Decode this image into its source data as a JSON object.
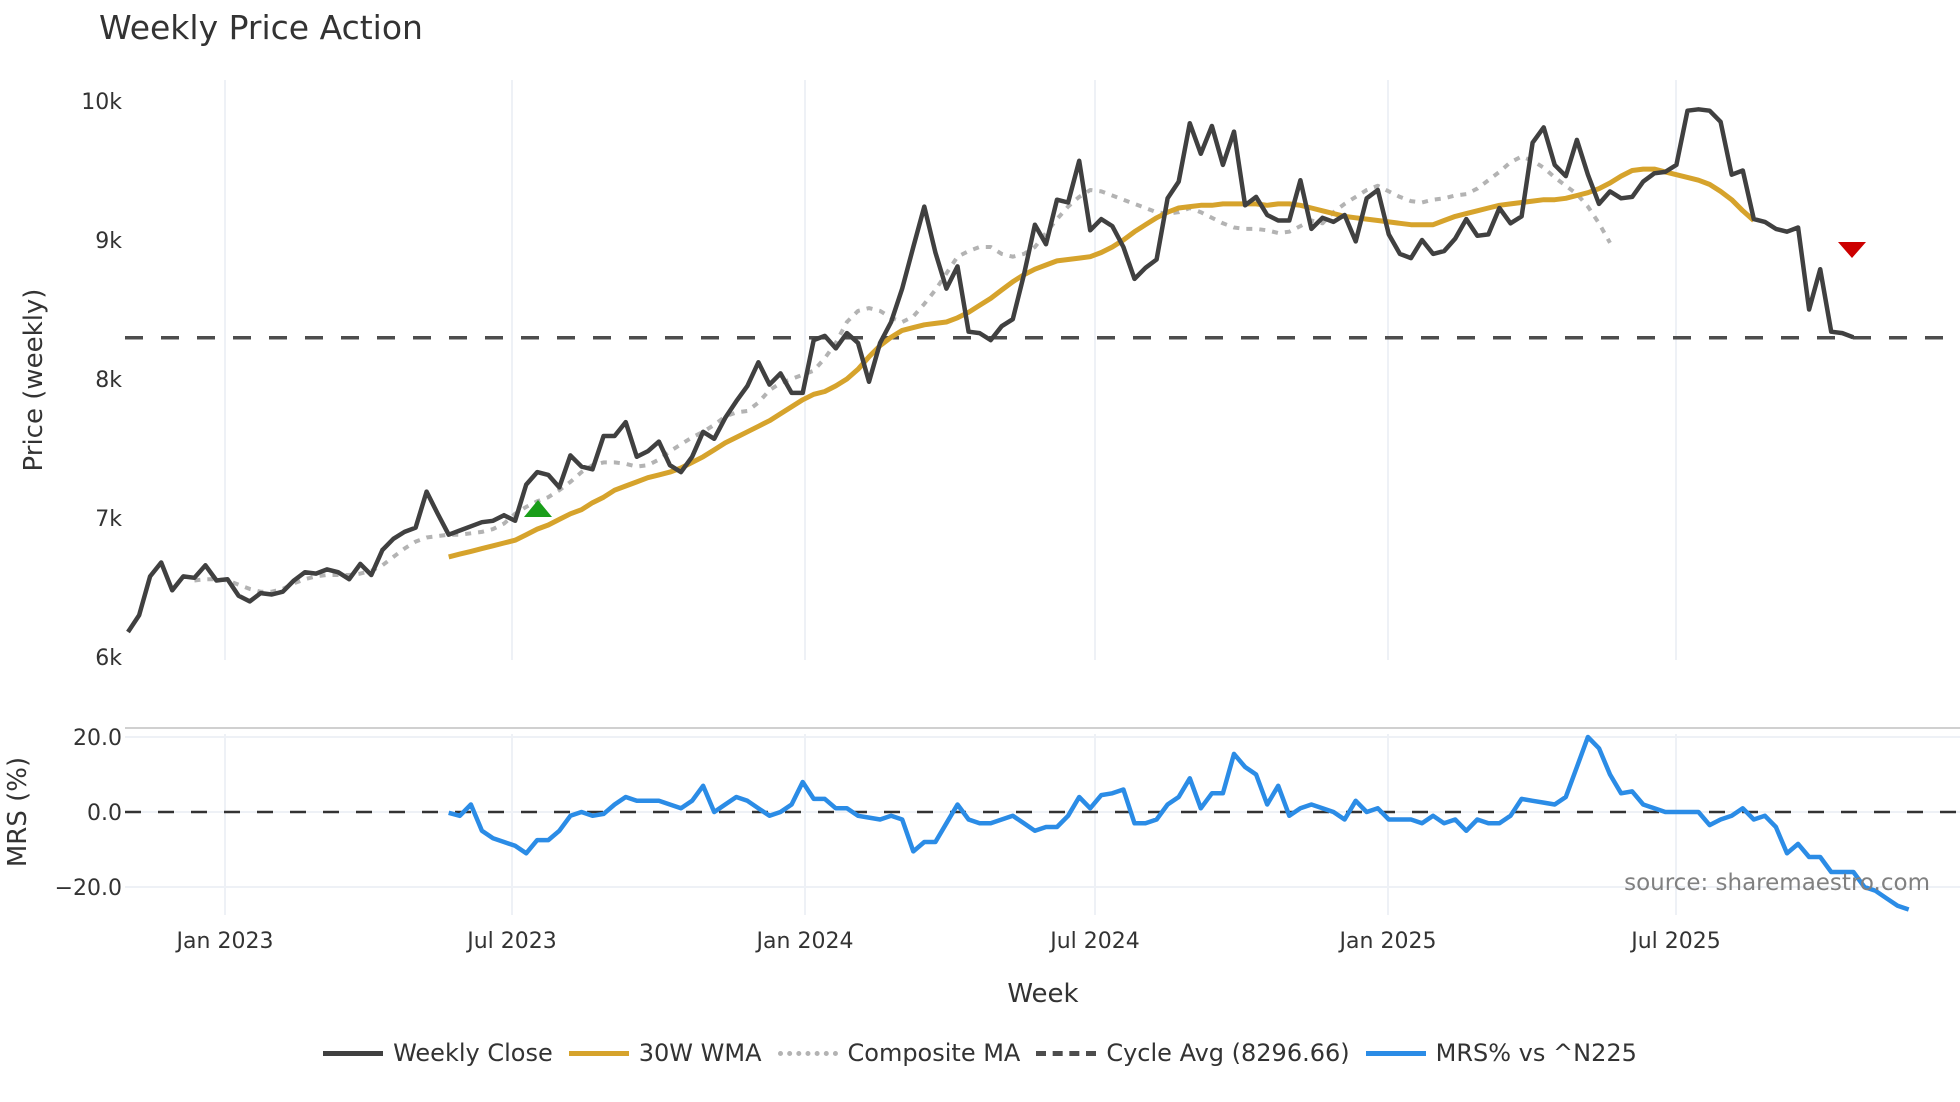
{
  "title": "Weekly Price Action",
  "colors": {
    "weekly_close": "#404040",
    "wma30": "#d6a32c",
    "composite_ma": "#b3b3b3",
    "cycle_avg": "#4d4d4d",
    "mrs": "#2b8ce6",
    "buy_marker": "#1a9e1a",
    "sell_marker": "#cc0000",
    "grid": "#eef1f6"
  },
  "price_panel": {
    "ylabel": "Price (weekly)",
    "yticks": [
      "10k",
      "9k",
      "8k",
      "7k",
      "6k"
    ]
  },
  "mrs_panel": {
    "ylabel": "MRS (%)",
    "yticks": [
      "20.0",
      "0.0",
      "−20.0"
    ]
  },
  "xaxis": {
    "title": "Week",
    "ticks": [
      "Jan 2023",
      "Jul 2023",
      "Jan 2024",
      "Jul 2024",
      "Jan 2025",
      "Jul 2025"
    ]
  },
  "watermark": "source: sharemaestro.com",
  "legend": [
    {
      "label": "Weekly Close",
      "style": "solid",
      "key": "weekly_close"
    },
    {
      "label": "30W WMA",
      "style": "solid",
      "key": "wma30"
    },
    {
      "label": "Composite MA",
      "style": "dotted",
      "key": "composite_ma"
    },
    {
      "label": "Cycle Avg (8296.66)",
      "style": "dashed",
      "key": "cycle_avg"
    },
    {
      "label": "MRS% vs ^N225",
      "style": "solid",
      "key": "mrs"
    }
  ],
  "chart_data": [
    {
      "type": "line",
      "title": "Weekly Price Action",
      "xlabel": "Week",
      "ylabel": "Price (weekly)",
      "ylim": [
        6000,
        10150
      ],
      "x_start_week": "2022-10-24",
      "x_step": "1 week",
      "x_ticks": [
        "Jan 2023",
        "Jul 2023",
        "Jan 2024",
        "Jul 2024",
        "Jan 2025",
        "Jul 2025"
      ],
      "grid": true,
      "legend_position": "bottom",
      "series": [
        {
          "name": "Weekly Close",
          "values": [
            6180,
            6300,
            6580,
            6680,
            6480,
            6580,
            6570,
            6660,
            6550,
            6560,
            6440,
            6400,
            6460,
            6450,
            6470,
            6550,
            6610,
            6600,
            6630,
            6610,
            6560,
            6670,
            6590,
            6770,
            6850,
            6900,
            6930,
            7190,
            7030,
            6880,
            6910,
            6940,
            6970,
            6980,
            7020,
            6980,
            7240,
            7330,
            7310,
            7220,
            7450,
            7370,
            7350,
            7590,
            7590,
            7690,
            7440,
            7480,
            7550,
            7380,
            7330,
            7440,
            7620,
            7570,
            7720,
            7840,
            7950,
            8120,
            7960,
            8040,
            7900,
            7900,
            8280,
            8310,
            8220,
            8330,
            8260,
            7980,
            8260,
            8410,
            8650,
            8950,
            9240,
            8910,
            8650,
            8810,
            8340,
            8330,
            8280,
            8380,
            8430,
            8750,
            9110,
            8970,
            9290,
            9270,
            9570,
            9070,
            9150,
            9100,
            8950,
            8720,
            8800,
            8860,
            9300,
            9420,
            9840,
            9620,
            9820,
            9540,
            9780,
            9250,
            9310,
            9180,
            9140,
            9140,
            9430,
            9080,
            9160,
            9130,
            9180,
            8990,
            9300,
            9360,
            9040,
            8900,
            8870,
            9000,
            8900,
            8920,
            9010,
            9150,
            9030,
            9040,
            9230,
            9120,
            9170,
            9700,
            9810,
            9540,
            9460,
            9720,
            9470,
            9260,
            9350,
            9300,
            9310,
            9420,
            9480,
            9490,
            9540,
            9930,
            9940,
            9930,
            9850,
            9470,
            9500,
            9150,
            9130,
            9080,
            9060,
            9090,
            8500,
            8790,
            8340,
            8330,
            8300
          ]
        },
        {
          "name": "30W WMA",
          "start_index": 29,
          "values": [
            6720,
            6740,
            6760,
            6780,
            6800,
            6820,
            6840,
            6880,
            6920,
            6950,
            6990,
            7030,
            7060,
            7110,
            7150,
            7200,
            7230,
            7260,
            7290,
            7310,
            7330,
            7360,
            7400,
            7440,
            7490,
            7540,
            7580,
            7620,
            7660,
            7700,
            7750,
            7800,
            7850,
            7890,
            7910,
            7950,
            8000,
            8070,
            8160,
            8240,
            8300,
            8350,
            8370,
            8390,
            8400,
            8410,
            8440,
            8480,
            8530,
            8580,
            8640,
            8700,
            8750,
            8790,
            8820,
            8850,
            8860,
            8870,
            8880,
            8910,
            8950,
            9000,
            9060,
            9110,
            9160,
            9200,
            9230,
            9240,
            9250,
            9250,
            9260,
            9260,
            9260,
            9260,
            9250,
            9260,
            9260,
            9250,
            9230,
            9210,
            9190,
            9170,
            9160,
            9150,
            9140,
            9130,
            9120,
            9110,
            9110,
            9110,
            9140,
            9170,
            9190,
            9210,
            9230,
            9250,
            9260,
            9270,
            9280,
            9290,
            9290,
            9300,
            9320,
            9340,
            9370,
            9410,
            9460,
            9500,
            9510,
            9510,
            9490,
            9470,
            9450,
            9430,
            9400,
            9350,
            9290,
            9210,
            9140
          ]
        },
        {
          "name": "Composite MA",
          "start_index": 6,
          "values": [
            6550,
            6560,
            6560,
            6550,
            6520,
            6490,
            6470,
            6470,
            6490,
            6530,
            6560,
            6580,
            6590,
            6590,
            6590,
            6600,
            6620,
            6660,
            6720,
            6780,
            6830,
            6860,
            6870,
            6880,
            6880,
            6890,
            6900,
            6920,
            6960,
            7030,
            7080,
            7120,
            7150,
            7200,
            7260,
            7330,
            7380,
            7400,
            7400,
            7390,
            7370,
            7380,
            7420,
            7480,
            7530,
            7580,
            7620,
            7670,
            7730,
            7760,
            7770,
            7830,
            7920,
            7970,
            8000,
            8030,
            8060,
            8150,
            8260,
            8410,
            8490,
            8510,
            8490,
            8440,
            8410,
            8450,
            8540,
            8640,
            8760,
            8880,
            8920,
            8950,
            8950,
            8900,
            8880,
            8900,
            8950,
            9050,
            9150,
            9240,
            9310,
            9360,
            9350,
            9320,
            9290,
            9260,
            9230,
            9200,
            9190,
            9200,
            9230,
            9200,
            9160,
            9120,
            9090,
            9080,
            9080,
            9070,
            9050,
            9060,
            9100,
            9140,
            9120,
            9200,
            9260,
            9310,
            9360,
            9390,
            9350,
            9310,
            9280,
            9270,
            9290,
            9300,
            9320,
            9330,
            9370,
            9430,
            9490,
            9560,
            9600,
            9570,
            9520,
            9450,
            9390,
            9330,
            9240,
            9120,
            8980
          ]
        },
        {
          "name": "Cycle Avg (8296.66)",
          "constant": 8296.66
        }
      ],
      "markers": [
        {
          "type": "buy",
          "shape": "triangle-up",
          "color": "#1a9e1a",
          "x": "Aug 2023",
          "y": 7050
        },
        {
          "type": "sell",
          "shape": "triangle-down",
          "color": "#cc0000",
          "x": "Oct 2025",
          "y": 8930
        }
      ]
    },
    {
      "type": "line",
      "xlabel": "Week",
      "ylabel": "MRS (%)",
      "ylim": [
        -28,
        22
      ],
      "reference_line": 0,
      "series": [
        {
          "name": "MRS% vs ^N225",
          "start_index": 29,
          "values": [
            -0.2,
            -1,
            2,
            -5,
            -7,
            -8,
            -9,
            -11,
            -7.5,
            -7.5,
            -5,
            -1,
            0,
            -1,
            -0.5,
            2,
            4,
            3,
            3,
            3,
            2,
            1,
            3,
            7,
            0,
            2,
            4,
            3,
            1,
            -1,
            0,
            2,
            8,
            3.5,
            3.5,
            1,
            1,
            -1,
            -1.5,
            -2,
            -1,
            -2,
            -10.5,
            -8,
            -8,
            -3,
            2,
            -2,
            -3,
            -3,
            -2,
            -1,
            -3,
            -5,
            -4,
            -4,
            -1,
            4,
            1,
            4.5,
            5,
            6,
            -3,
            -3,
            -2,
            2,
            4,
            9,
            1,
            5,
            5,
            15.5,
            12,
            10,
            2,
            7,
            -1,
            1,
            2,
            1,
            0,
            -2,
            3,
            0,
            1,
            -2,
            -2,
            -2,
            -3,
            -1,
            -3,
            -2,
            -5,
            -2,
            -3,
            -3,
            -1,
            3.5,
            3,
            2.5,
            2,
            4,
            12,
            20,
            17,
            10,
            5,
            5.5,
            2,
            1,
            0,
            0,
            0,
            0,
            -3.5,
            -2,
            -1,
            1,
            -2,
            -1,
            -4,
            -11,
            -8.5,
            -12,
            -12,
            -16,
            -16,
            -16,
            -20,
            -21,
            -23,
            -25,
            -26
          ]
        }
      ]
    }
  ]
}
